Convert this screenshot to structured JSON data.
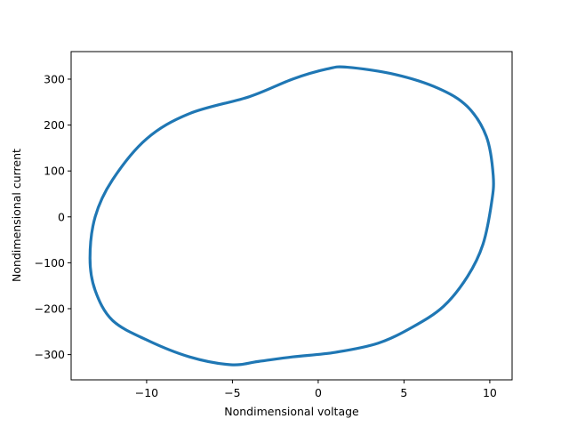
{
  "chart_data": {
    "type": "line",
    "title": "",
    "xlabel": "Nondimensional voltage",
    "ylabel": "Nondimensional current",
    "xlim": [
      -14.4,
      11.3
    ],
    "ylim": [
      -355,
      360
    ],
    "xticks": [
      -10,
      -5,
      0,
      5,
      10
    ],
    "yticks": [
      -300,
      -200,
      -100,
      0,
      100,
      200,
      300
    ],
    "xtick_labels": [
      "−10",
      "−5",
      "0",
      "5",
      "10"
    ],
    "ytick_labels": [
      "−300",
      "−200",
      "−100",
      "0",
      "100",
      "200",
      "300"
    ],
    "grid": false,
    "legend": "none",
    "series": [
      {
        "color": "#1f77b4",
        "x": [
          1.7,
          4.5,
          7.0,
          8.7,
          9.8,
          10.2,
          10.1,
          9.6,
          8.7,
          7.3,
          5.5,
          3.5,
          1.0,
          -1.5,
          -3.5,
          -5.1,
          -7.5,
          -10.0,
          -12.0,
          -13.0,
          -13.3,
          -13.0,
          -12.0,
          -10.0,
          -7.5,
          -4.0,
          -1.5,
          0.5,
          1.7
        ],
        "y": [
          326,
          310,
          280,
          240,
          175,
          90,
          30,
          -60,
          -130,
          -195,
          -240,
          -275,
          -295,
          -305,
          -315,
          -322,
          -305,
          -268,
          -225,
          -160,
          -90,
          0,
          80,
          170,
          225,
          262,
          300,
          322,
          326
        ]
      }
    ]
  }
}
